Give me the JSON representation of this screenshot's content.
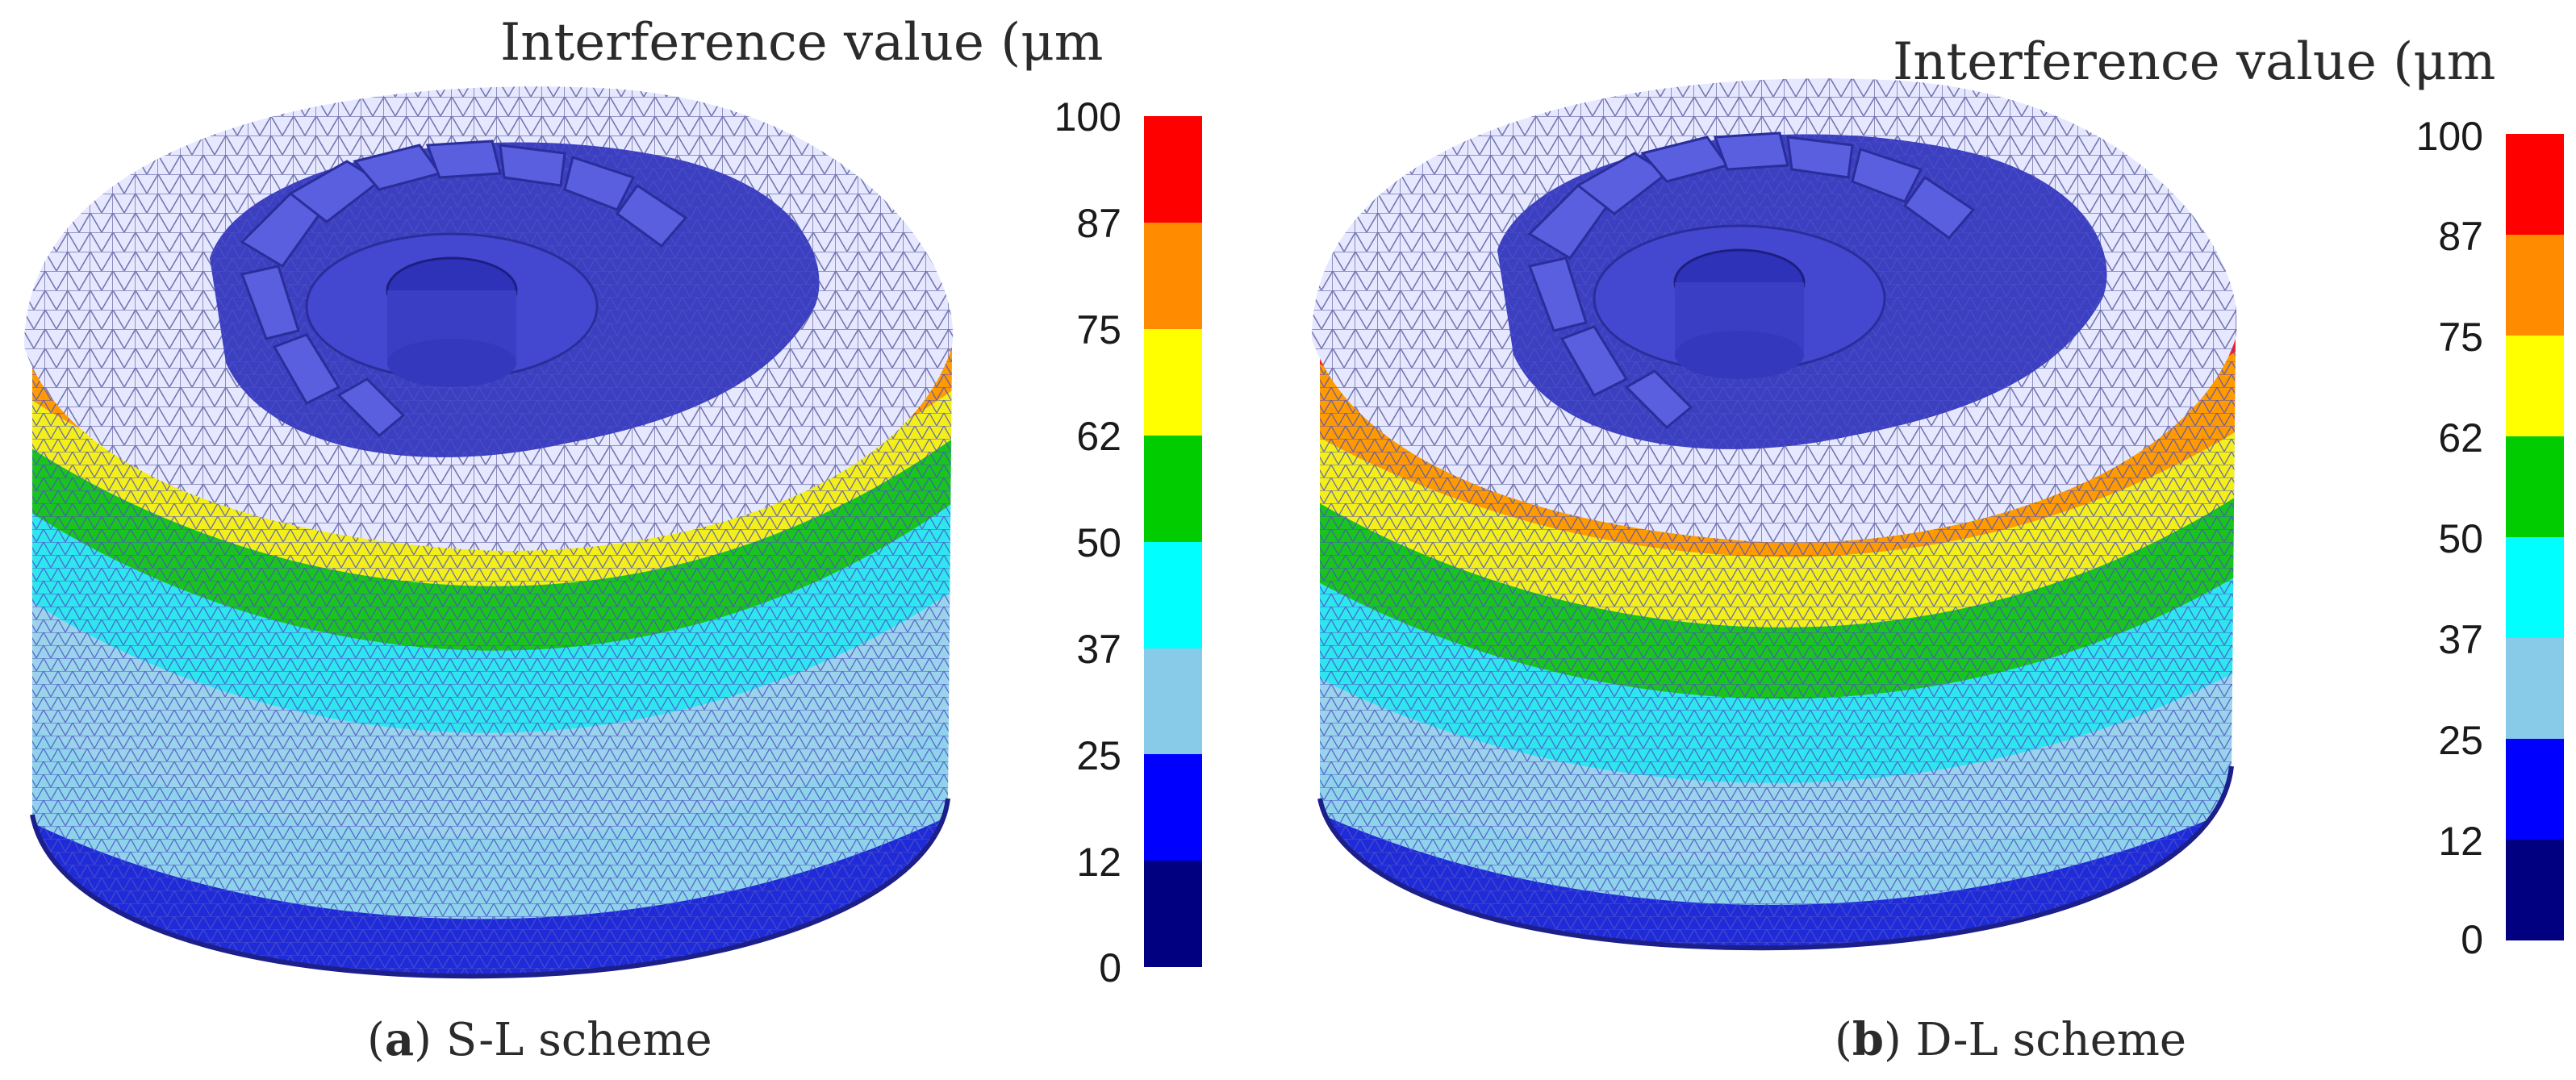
{
  "colorbar": {
    "ticks": [
      "100",
      "87",
      "75",
      "62",
      "50",
      "37",
      "25",
      "12",
      "0"
    ],
    "colors": [
      "#ff0000",
      "#ff8c00",
      "#ffff00",
      "#00cc00",
      "#00ffff",
      "#87cbe8",
      "#0000ff",
      "#000080"
    ]
  },
  "panels": [
    {
      "legend_title": "Interference value (μm",
      "caption_letter": "a",
      "caption_text": " S-L scheme"
    },
    {
      "legend_title": "Interference value (μm",
      "caption_letter": "b",
      "caption_text": " D-L scheme"
    }
  ]
}
